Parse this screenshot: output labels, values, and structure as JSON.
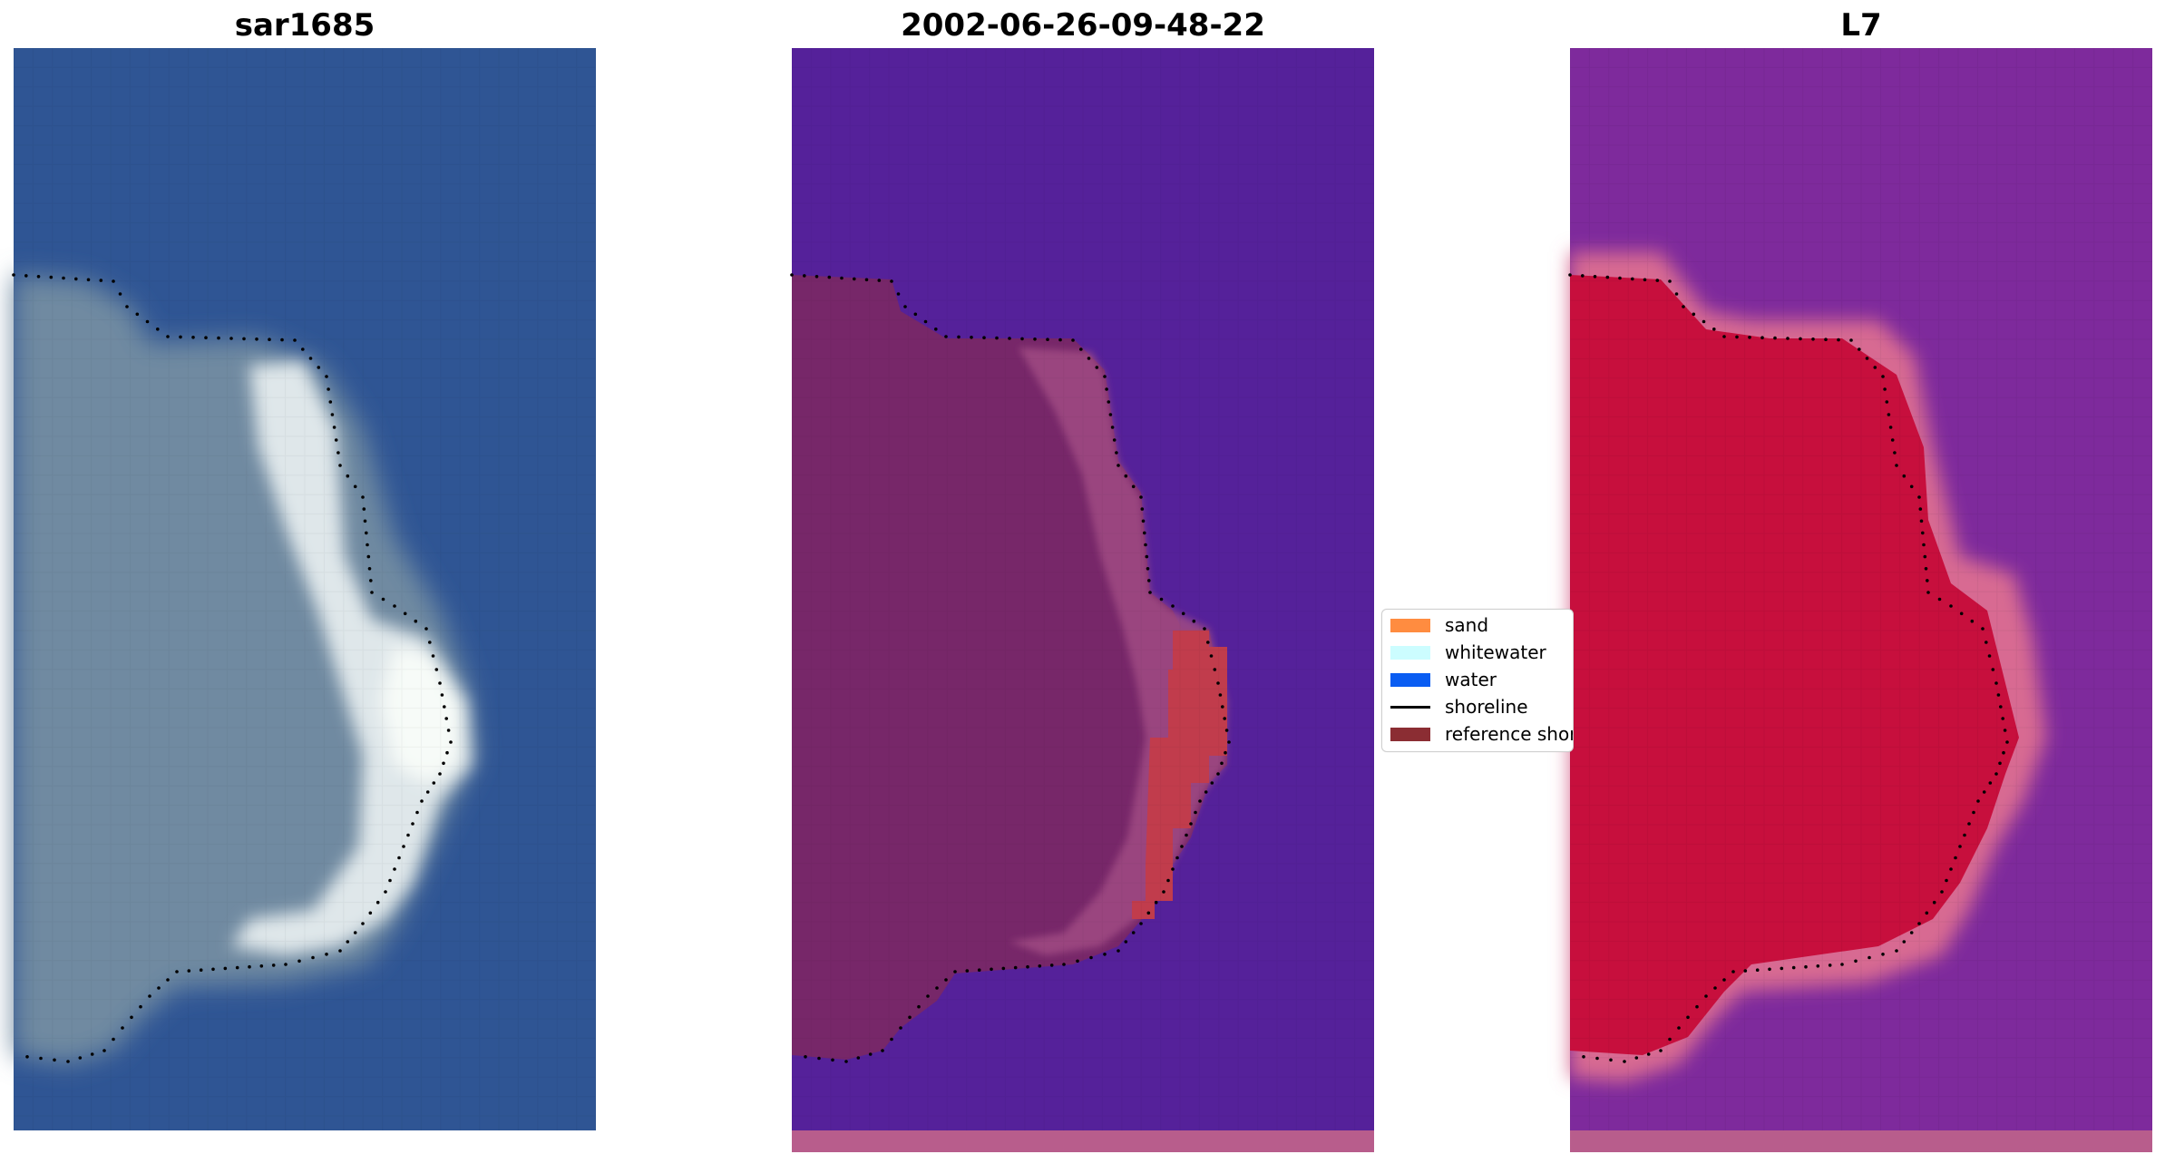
{
  "panels": [
    {
      "title": "sar1685"
    },
    {
      "title": "2002-06-26-09-48-22"
    },
    {
      "title": "L7"
    }
  ],
  "legend": {
    "items": [
      {
        "label": "sand",
        "color": "#ff8c40",
        "kind": "patch"
      },
      {
        "label": "whitewater",
        "color": "#ccfdff",
        "kind": "patch"
      },
      {
        "label": "water",
        "color": "#0a5df2",
        "kind": "patch"
      },
      {
        "label": "shoreline",
        "color": "#000000",
        "kind": "line"
      },
      {
        "label": "reference shoreline",
        "color": "#8b2d33",
        "kind": "patch"
      }
    ]
  },
  "colors": {
    "sar_water": "#2f5594",
    "sar_land": "#6f8aa1",
    "sar_bright": "#eef4f2",
    "classified_water": "#55219a",
    "classified_land": "#772769",
    "classified_sand": "#c13c4c",
    "classified_pink": "#b85d8c",
    "l7_water": "#7e2a9c",
    "l7_land": "#c70f3d",
    "l7_pink": "#d86a92",
    "shoreline_dots": "#000000"
  }
}
